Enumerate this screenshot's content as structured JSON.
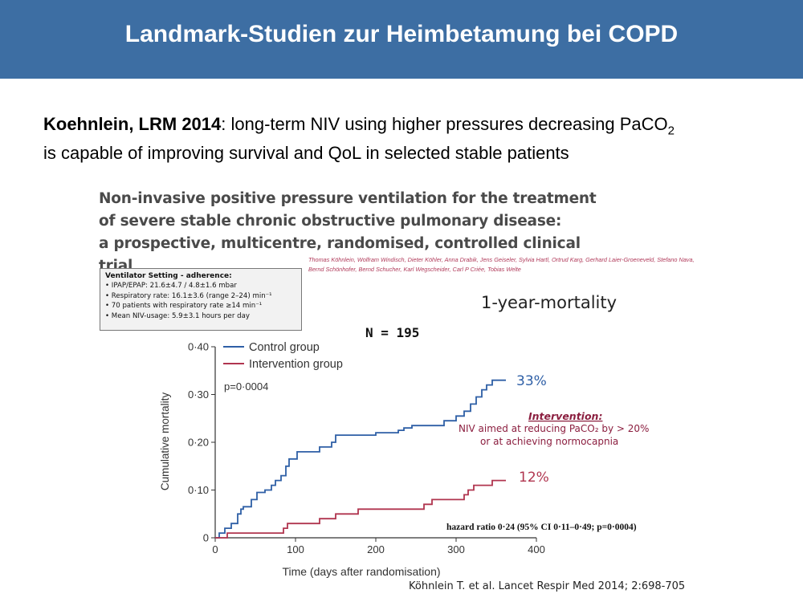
{
  "slide": {
    "title": "Landmark-Studien zur Heimbetamung bei COPD",
    "lead_bold": "Koehnlein, LRM 2014",
    "lead_text_1": ": long-term NIV using higher pressures decreasing PaCO",
    "lead_sub": "2",
    "lead_text_2": "is capable of improving survival and QoL in selected stable patients"
  },
  "paper": {
    "title_lines": [
      "Non-invasive positive pressure ventilation for the treatment",
      "of severe stable chronic obstructive pulmonary disease:",
      "a prospective, multicentre, randomised, controlled clinical trial"
    ],
    "authors_1": "Thomas Köhnlein, Wolfram Windisch, Dieter Köhler, Anna Drabik, Jens Geiseler, Sylvia Hartl, Ortrud Karg, Gerhard Laier-Groeneveld, Stefano Nava,",
    "authors_2": "Bernd Schönhofer, Bernd Schucher, Karl Wegscheider, Carl P Criée, Tobias Welte"
  },
  "ventilator_box": {
    "title": "Ventilator Setting - adherence:",
    "lines": [
      "• IPAP/EPAP: 21.6±4.7 / 4.8±1.6 mbar",
      "• Respiratory rate: 16.1±3.6 (range 2–24) min⁻¹",
      "• 70 patients with respiratory rate ≥14 min⁻¹",
      "• Mean NIV-usage: 5.9±3.1 hours per day"
    ]
  },
  "annotations": {
    "one_year": "1-year-mortality",
    "n": "N = 195",
    "p_value": "p=0·0004",
    "control_pct": "33%",
    "intervention_pct": "12%",
    "intervention_title": "Intervention:",
    "intervention_line1": "NIV aimed at reducing PaCO₂ by > 20%",
    "intervention_line2": "or at achieving normocapnia",
    "hazard": "hazard ratio 0·24 (95% CI 0·11–0·49; p=0·0004)"
  },
  "citation": "Köhnlein T. et al. Lancet Respir Med 2014; 2:698-705",
  "chart_data": {
    "type": "line",
    "xlabel": "Time (days after randomisation)",
    "ylabel": "Cumulative mortality",
    "xlim": [
      0,
      400
    ],
    "ylim": [
      0,
      0.4
    ],
    "x_ticks": [
      "0",
      "100",
      "200",
      "300",
      "400"
    ],
    "y_ticks": [
      "0",
      "0·10",
      "0·20",
      "0·30",
      "0·40"
    ],
    "series": [
      {
        "name": "Control group",
        "color": "#2e5fa6",
        "points": [
          [
            0,
            0
          ],
          [
            5,
            0
          ],
          [
            5,
            0.01
          ],
          [
            12,
            0.01
          ],
          [
            12,
            0.02
          ],
          [
            20,
            0.02
          ],
          [
            20,
            0.03
          ],
          [
            28,
            0.03
          ],
          [
            28,
            0.05
          ],
          [
            32,
            0.05
          ],
          [
            32,
            0.06
          ],
          [
            35,
            0.06
          ],
          [
            35,
            0.065
          ],
          [
            45,
            0.065
          ],
          [
            45,
            0.08
          ],
          [
            52,
            0.08
          ],
          [
            52,
            0.095
          ],
          [
            62,
            0.095
          ],
          [
            62,
            0.1
          ],
          [
            70,
            0.1
          ],
          [
            70,
            0.11
          ],
          [
            75,
            0.11
          ],
          [
            75,
            0.12
          ],
          [
            82,
            0.12
          ],
          [
            82,
            0.13
          ],
          [
            88,
            0.13
          ],
          [
            88,
            0.15
          ],
          [
            92,
            0.15
          ],
          [
            92,
            0.165
          ],
          [
            102,
            0.165
          ],
          [
            102,
            0.18
          ],
          [
            130,
            0.18
          ],
          [
            130,
            0.19
          ],
          [
            145,
            0.19
          ],
          [
            145,
            0.2
          ],
          [
            150,
            0.2
          ],
          [
            150,
            0.215
          ],
          [
            200,
            0.215
          ],
          [
            200,
            0.22
          ],
          [
            228,
            0.22
          ],
          [
            228,
            0.225
          ],
          [
            235,
            0.225
          ],
          [
            235,
            0.23
          ],
          [
            245,
            0.23
          ],
          [
            245,
            0.235
          ],
          [
            285,
            0.235
          ],
          [
            285,
            0.245
          ],
          [
            300,
            0.245
          ],
          [
            300,
            0.255
          ],
          [
            310,
            0.255
          ],
          [
            310,
            0.265
          ],
          [
            318,
            0.265
          ],
          [
            318,
            0.28
          ],
          [
            325,
            0.28
          ],
          [
            325,
            0.295
          ],
          [
            332,
            0.295
          ],
          [
            332,
            0.31
          ],
          [
            338,
            0.31
          ],
          [
            338,
            0.32
          ],
          [
            345,
            0.32
          ],
          [
            345,
            0.33
          ],
          [
            362,
            0.33
          ]
        ]
      },
      {
        "name": "Intervention group",
        "color": "#b0354f",
        "points": [
          [
            0,
            0
          ],
          [
            15,
            0
          ],
          [
            15,
            0.01
          ],
          [
            85,
            0.01
          ],
          [
            85,
            0.02
          ],
          [
            90,
            0.02
          ],
          [
            90,
            0.03
          ],
          [
            130,
            0.03
          ],
          [
            130,
            0.04
          ],
          [
            150,
            0.04
          ],
          [
            150,
            0.05
          ],
          [
            178,
            0.05
          ],
          [
            178,
            0.06
          ],
          [
            260,
            0.06
          ],
          [
            260,
            0.07
          ],
          [
            270,
            0.07
          ],
          [
            270,
            0.08
          ],
          [
            310,
            0.08
          ],
          [
            310,
            0.09
          ],
          [
            315,
            0.09
          ],
          [
            315,
            0.1
          ],
          [
            322,
            0.1
          ],
          [
            322,
            0.11
          ],
          [
            345,
            0.11
          ],
          [
            345,
            0.12
          ],
          [
            362,
            0.12
          ]
        ]
      }
    ]
  }
}
